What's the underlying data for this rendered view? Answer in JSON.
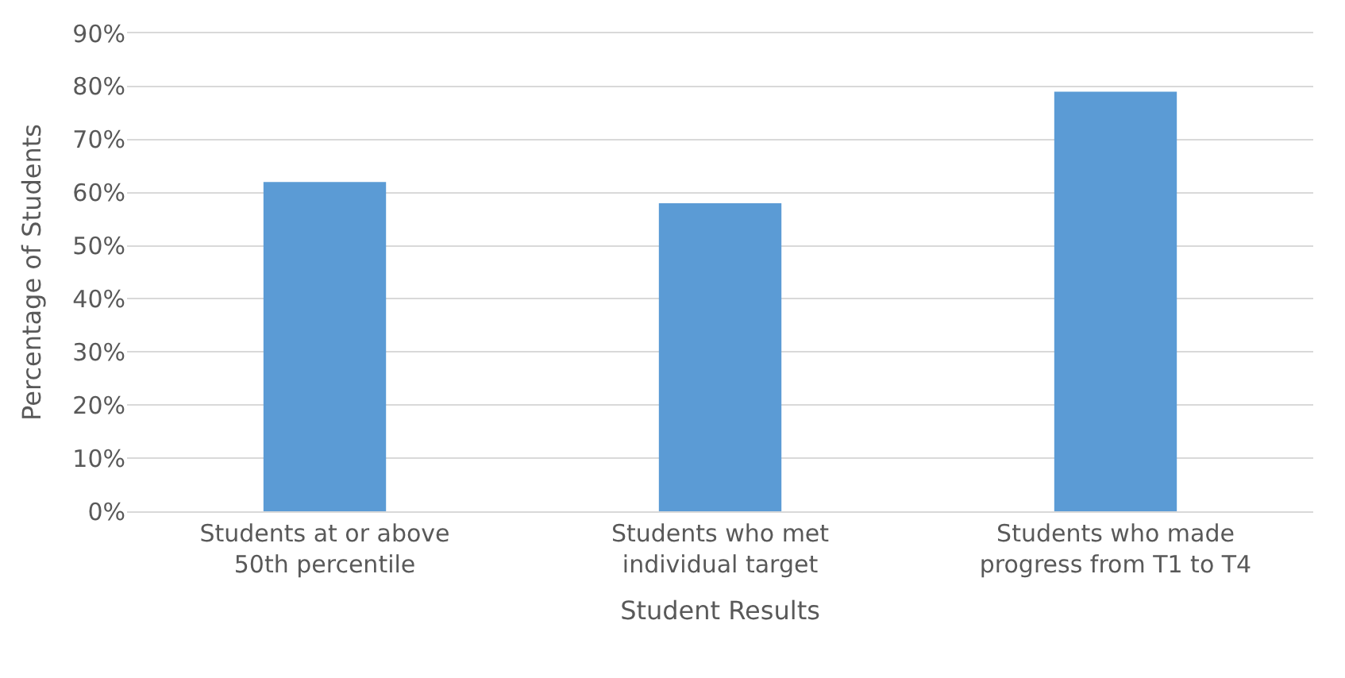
{
  "chart_data": {
    "type": "bar",
    "xlabel": "Student Results",
    "ylabel": "Percentage of Students",
    "categories": [
      "Students at or above 50th percentile",
      "Students who met individual target",
      "Students who made progress from T1 to T4"
    ],
    "values": [
      62,
      58,
      79
    ],
    "color": "#5b9bd5",
    "ylim": [
      0,
      90
    ],
    "yticks": [
      {
        "value": 0,
        "label": "0%"
      },
      {
        "value": 10,
        "label": "10%"
      },
      {
        "value": 20,
        "label": "20%"
      },
      {
        "value": 30,
        "label": "30%"
      },
      {
        "value": 40,
        "label": "40%"
      },
      {
        "value": 50,
        "label": "50%"
      },
      {
        "value": 60,
        "label": "60%"
      },
      {
        "value": 70,
        "label": "70%"
      },
      {
        "value": 80,
        "label": "80%"
      },
      {
        "value": 90,
        "label": "90%"
      }
    ],
    "grid": "y"
  }
}
